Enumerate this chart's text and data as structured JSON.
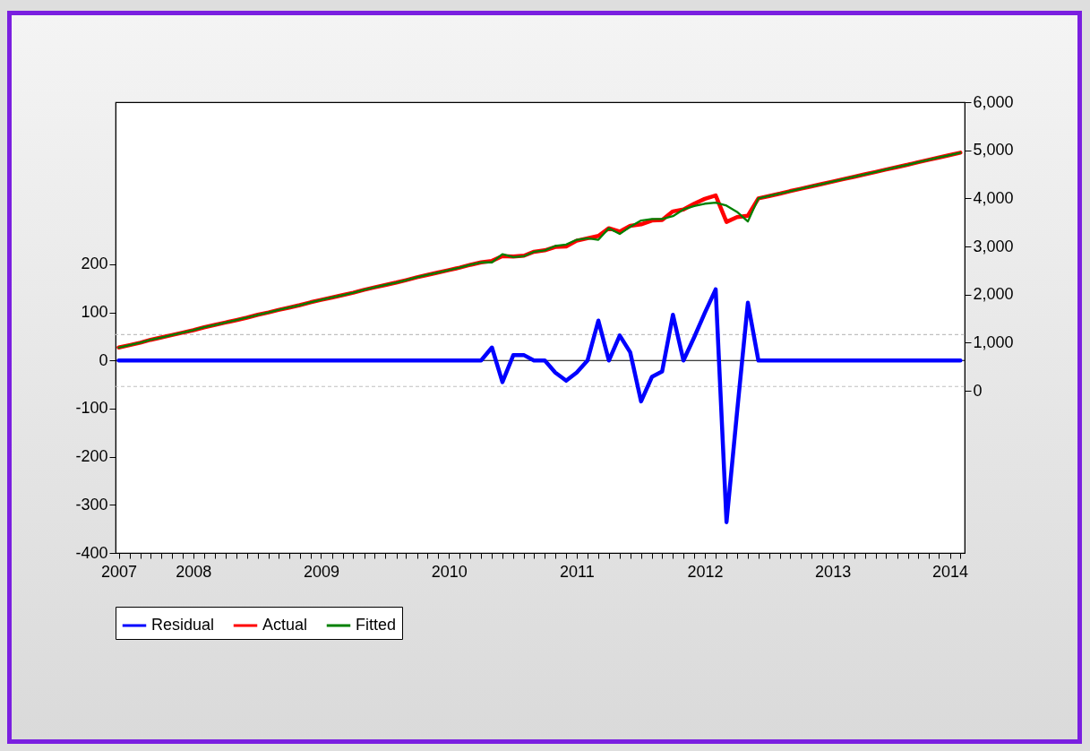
{
  "chart_data": {
    "type": "line",
    "x": [
      "2007-12",
      "2008-01",
      "2008-02",
      "2008-03",
      "2008-04",
      "2008-05",
      "2008-06",
      "2008-07",
      "2008-08",
      "2008-09",
      "2008-10",
      "2008-11",
      "2008-12",
      "2009-01",
      "2009-02",
      "2009-03",
      "2009-04",
      "2009-05",
      "2009-06",
      "2009-07",
      "2009-08",
      "2009-09",
      "2009-10",
      "2009-11",
      "2009-12",
      "2010-01",
      "2010-02",
      "2010-03",
      "2010-04",
      "2010-05",
      "2010-06",
      "2010-07",
      "2010-08",
      "2010-09",
      "2010-10",
      "2010-11",
      "2010-12",
      "2011-01",
      "2011-02",
      "2011-03",
      "2011-04",
      "2011-05",
      "2011-06",
      "2011-07",
      "2011-08",
      "2011-09",
      "2011-10",
      "2011-11",
      "2011-12",
      "2012-01",
      "2012-02",
      "2012-03",
      "2012-04",
      "2012-05",
      "2012-06",
      "2012-07",
      "2012-08",
      "2012-09",
      "2012-10",
      "2012-11",
      "2012-12",
      "2013-01",
      "2013-02",
      "2013-03",
      "2013-04",
      "2013-05",
      "2013-06",
      "2013-07",
      "2013-08",
      "2013-09",
      "2013-10",
      "2013-11",
      "2013-12",
      "2014-01",
      "2014-02",
      "2014-03",
      "2014-04",
      "2014-05",
      "2014-06",
      "2014-07"
    ],
    "series": [
      {
        "name": "Residual",
        "color": "#0000ff",
        "values": [
          0,
          0,
          0,
          0,
          0,
          0,
          0,
          0,
          0,
          0,
          0,
          0,
          0,
          0,
          0,
          0,
          0,
          0,
          0,
          0,
          0,
          0,
          0,
          0,
          0,
          0,
          0,
          0,
          0,
          0,
          0,
          0,
          0,
          0,
          0,
          27,
          -45,
          11,
          11,
          0,
          0,
          -25,
          -42,
          -25,
          0,
          83,
          0,
          52,
          17,
          -85,
          -34,
          -23,
          95,
          0,
          49,
          99,
          148,
          -336,
          -108,
          120,
          0,
          0,
          0,
          0,
          0,
          0,
          0,
          0,
          0,
          0,
          0,
          0,
          0,
          0,
          0,
          0,
          0,
          0,
          0,
          0
        ]
      },
      {
        "name": "Actual",
        "color": "#ff0000",
        "axis": "y2",
        "values": [
          900,
          950,
          1000,
          1060,
          1110,
          1160,
          1210,
          1260,
          1320,
          1370,
          1420,
          1470,
          1520,
          1580,
          1630,
          1680,
          1730,
          1780,
          1840,
          1890,
          1940,
          1990,
          2040,
          2100,
          2150,
          2200,
          2250,
          2300,
          2360,
          2410,
          2460,
          2510,
          2560,
          2620,
          2670,
          2700,
          2800,
          2790,
          2810,
          2890,
          2920,
          2990,
          3000,
          3120,
          3170,
          3220,
          3380,
          3310,
          3430,
          3460,
          3540,
          3550,
          3730,
          3770,
          3890,
          3990,
          4060,
          3510,
          3610,
          3640,
          4000,
          4050,
          4100,
          4150,
          4200,
          4250,
          4300,
          4350,
          4400,
          4450,
          4500,
          4550,
          4600,
          4650,
          4700,
          4750,
          4800,
          4850,
          4900,
          4950
        ]
      },
      {
        "name": "Fitted",
        "color": "#008000",
        "axis": "y2",
        "values": [
          900,
          950,
          1000,
          1060,
          1110,
          1160,
          1210,
          1260,
          1320,
          1370,
          1420,
          1470,
          1520,
          1580,
          1630,
          1680,
          1730,
          1780,
          1840,
          1890,
          1940,
          1990,
          2040,
          2100,
          2150,
          2200,
          2250,
          2300,
          2360,
          2410,
          2460,
          2510,
          2560,
          2620,
          2670,
          2670,
          2840,
          2780,
          2800,
          2890,
          2920,
          3010,
          3040,
          3140,
          3170,
          3140,
          3380,
          3260,
          3410,
          3540,
          3570,
          3570,
          3630,
          3770,
          3840,
          3890,
          3910,
          3850,
          3720,
          3520,
          4000,
          4050,
          4100,
          4150,
          4200,
          4250,
          4300,
          4350,
          4400,
          4450,
          4500,
          4550,
          4600,
          4650,
          4700,
          4750,
          4800,
          4850,
          4900,
          4950
        ]
      }
    ],
    "xlim": [
      "2007-11-22",
      "2014-07-13"
    ],
    "xticks": [
      {
        "value": "2007-12",
        "label": "2007"
      },
      {
        "value": "2008-01",
        "label": null
      },
      {
        "value": "2008-02",
        "label": null
      },
      {
        "value": "2008-03",
        "label": null
      },
      {
        "value": "2008-04",
        "label": null
      },
      {
        "value": "2008-05",
        "label": null
      },
      {
        "value": "2008-06",
        "label": null
      },
      {
        "value": "2008-07",
        "label": "2008"
      },
      {
        "value": "2008-08",
        "label": null
      },
      {
        "value": "2008-09",
        "label": null
      },
      {
        "value": "2008-10",
        "label": null
      },
      {
        "value": "2008-11",
        "label": null
      },
      {
        "value": "2008-12",
        "label": null
      },
      {
        "value": "2009-01",
        "label": null
      },
      {
        "value": "2009-02",
        "label": null
      },
      {
        "value": "2009-03",
        "label": null
      },
      {
        "value": "2009-04",
        "label": null
      },
      {
        "value": "2009-05",
        "label": null
      },
      {
        "value": "2009-06",
        "label": null
      },
      {
        "value": "2009-07",
        "label": "2009"
      },
      {
        "value": "2009-08",
        "label": null
      },
      {
        "value": "2009-09",
        "label": null
      },
      {
        "value": "2009-10",
        "label": null
      },
      {
        "value": "2009-11",
        "label": null
      },
      {
        "value": "2009-12",
        "label": null
      },
      {
        "value": "2010-01",
        "label": null
      },
      {
        "value": "2010-02",
        "label": null
      },
      {
        "value": "2010-03",
        "label": null
      },
      {
        "value": "2010-04",
        "label": null
      },
      {
        "value": "2010-05",
        "label": null
      },
      {
        "value": "2010-06",
        "label": null
      },
      {
        "value": "2010-07",
        "label": "2010"
      },
      {
        "value": "2010-08",
        "label": null
      },
      {
        "value": "2010-09",
        "label": null
      },
      {
        "value": "2010-10",
        "label": null
      },
      {
        "value": "2010-11",
        "label": null
      },
      {
        "value": "2010-12",
        "label": null
      },
      {
        "value": "2011-01",
        "label": null
      },
      {
        "value": "2011-02",
        "label": null
      },
      {
        "value": "2011-03",
        "label": null
      },
      {
        "value": "2011-04",
        "label": null
      },
      {
        "value": "2011-05",
        "label": null
      },
      {
        "value": "2011-06",
        "label": null
      },
      {
        "value": "2011-07",
        "label": "2011"
      },
      {
        "value": "2011-08",
        "label": null
      },
      {
        "value": "2011-09",
        "label": null
      },
      {
        "value": "2011-10",
        "label": null
      },
      {
        "value": "2011-11",
        "label": null
      },
      {
        "value": "2011-12",
        "label": null
      },
      {
        "value": "2012-01",
        "label": null
      },
      {
        "value": "2012-02",
        "label": null
      },
      {
        "value": "2012-03",
        "label": null
      },
      {
        "value": "2012-04",
        "label": null
      },
      {
        "value": "2012-05",
        "label": null
      },
      {
        "value": "2012-06",
        "label": null
      },
      {
        "value": "2012-07",
        "label": "2012"
      },
      {
        "value": "2012-08",
        "label": null
      },
      {
        "value": "2012-09",
        "label": null
      },
      {
        "value": "2012-10",
        "label": null
      },
      {
        "value": "2012-11",
        "label": null
      },
      {
        "value": "2012-12",
        "label": null
      },
      {
        "value": "2013-01",
        "label": null
      },
      {
        "value": "2013-02",
        "label": null
      },
      {
        "value": "2013-03",
        "label": null
      },
      {
        "value": "2013-04",
        "label": null
      },
      {
        "value": "2013-05",
        "label": null
      },
      {
        "value": "2013-06",
        "label": null
      },
      {
        "value": "2013-07",
        "label": "2013"
      },
      {
        "value": "2013-08",
        "label": null
      },
      {
        "value": "2013-09",
        "label": null
      },
      {
        "value": "2013-10",
        "label": null
      },
      {
        "value": "2013-11",
        "label": null
      },
      {
        "value": "2013-12",
        "label": null
      },
      {
        "value": "2014-01",
        "label": null
      },
      {
        "value": "2014-02",
        "label": null
      },
      {
        "value": "2014-03",
        "label": null
      },
      {
        "value": "2014-04",
        "label": null
      },
      {
        "value": "2014-05",
        "label": null
      },
      {
        "value": "2014-06",
        "label": "2014"
      },
      {
        "value": "2014-07",
        "label": null
      }
    ],
    "ylim": [
      -400,
      537
    ],
    "yticks": [
      -400,
      -300,
      -200,
      -100,
      0,
      100,
      200
    ],
    "y2lim": [
      -3370,
      6000
    ],
    "y2ticks": [
      0,
      {
        "value": 1000,
        "label": "1,000"
      },
      {
        "value": 2000,
        "label": "2,000"
      },
      {
        "value": 3000,
        "label": "3,000"
      },
      {
        "value": 4000,
        "label": "4,000"
      },
      {
        "value": 5000,
        "label": "5,000"
      },
      {
        "value": 6000,
        "label": "6,000"
      }
    ],
    "ref_lines": [
      {
        "axis": "y",
        "value": 0,
        "color": "#000000",
        "line_style": "solid"
      },
      {
        "axis": "y",
        "value": 54,
        "color": "#c0c0c0",
        "line_style": "dashed"
      },
      {
        "axis": "y",
        "value": -54,
        "color": "#c0c0c0",
        "line_style": "dashed"
      }
    ],
    "grid": false,
    "legend": "bottom"
  }
}
